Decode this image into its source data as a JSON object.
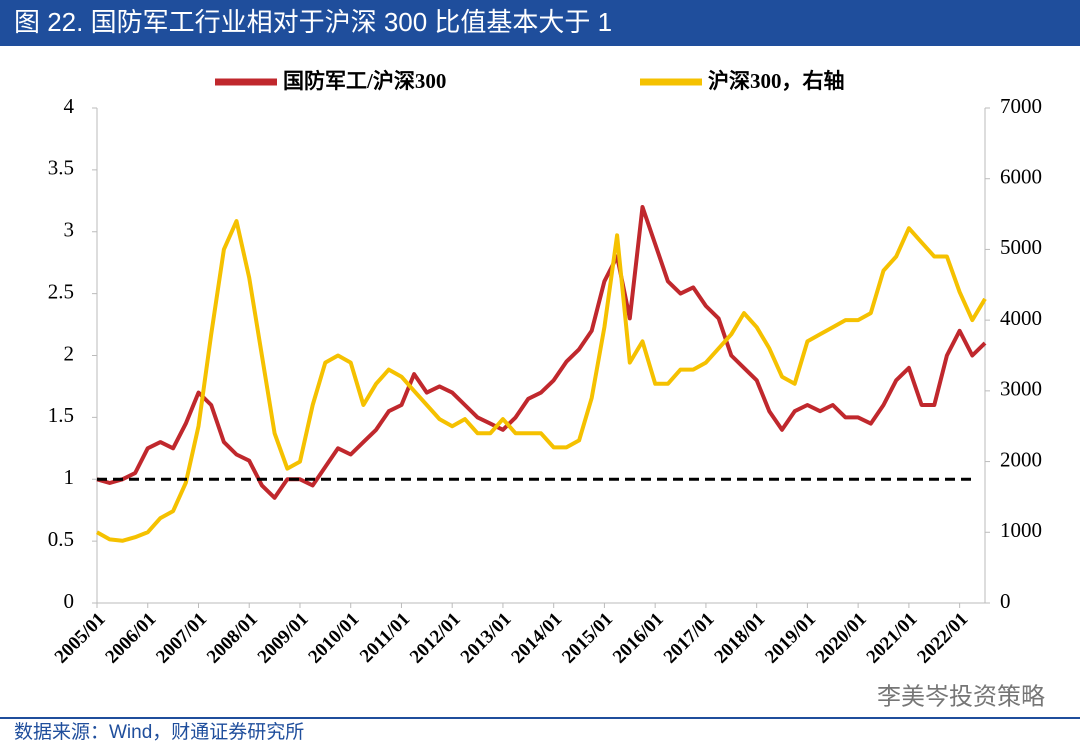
{
  "chart_data": {
    "type": "line",
    "title": "图 22. 国防军工行业相对于沪深 300 比值基本大于 1",
    "source": "数据来源：Wind，财通证券研究所",
    "watermark": "李美岑投资策略",
    "x": [
      "2005/01",
      "2005/04",
      "2005/07",
      "2005/10",
      "2006/01",
      "2006/04",
      "2006/07",
      "2006/10",
      "2007/01",
      "2007/04",
      "2007/07",
      "2007/10",
      "2008/01",
      "2008/04",
      "2008/07",
      "2008/10",
      "2009/01",
      "2009/04",
      "2009/07",
      "2009/10",
      "2010/01",
      "2010/04",
      "2010/07",
      "2010/10",
      "2011/01",
      "2011/04",
      "2011/07",
      "2011/10",
      "2012/01",
      "2012/04",
      "2012/07",
      "2012/10",
      "2013/01",
      "2013/04",
      "2013/07",
      "2013/10",
      "2014/01",
      "2014/04",
      "2014/07",
      "2014/10",
      "2015/01",
      "2015/04",
      "2015/07",
      "2015/10",
      "2016/01",
      "2016/04",
      "2016/07",
      "2016/10",
      "2017/01",
      "2017/04",
      "2017/07",
      "2017/10",
      "2018/01",
      "2018/04",
      "2018/07",
      "2018/10",
      "2019/01",
      "2019/04",
      "2019/07",
      "2019/10",
      "2020/01",
      "2020/04",
      "2020/07",
      "2020/10",
      "2021/01",
      "2021/04",
      "2021/07",
      "2021/10",
      "2022/01",
      "2022/04",
      "2022/07"
    ],
    "series": [
      {
        "name": "国防军工/沪深300",
        "color": "#c0282d",
        "axis": "y",
        "values": [
          1.0,
          0.97,
          1.0,
          1.05,
          1.25,
          1.3,
          1.25,
          1.45,
          1.7,
          1.6,
          1.3,
          1.2,
          1.15,
          0.95,
          0.85,
          1.0,
          1.0,
          0.95,
          1.1,
          1.25,
          1.2,
          1.3,
          1.4,
          1.55,
          1.6,
          1.85,
          1.7,
          1.75,
          1.7,
          1.6,
          1.5,
          1.45,
          1.4,
          1.5,
          1.65,
          1.7,
          1.8,
          1.95,
          2.05,
          2.2,
          2.6,
          2.8,
          2.3,
          3.2,
          2.9,
          2.6,
          2.5,
          2.55,
          2.4,
          2.3,
          2.0,
          1.9,
          1.8,
          1.55,
          1.4,
          1.55,
          1.6,
          1.55,
          1.6,
          1.5,
          1.5,
          1.45,
          1.6,
          1.8,
          1.9,
          1.6,
          1.6,
          2.0,
          2.2,
          2.0,
          2.1
        ]
      },
      {
        "name": "沪深300，右轴",
        "color": "#f5c100",
        "axis": "y2",
        "values": [
          1000,
          900,
          880,
          930,
          1000,
          1200,
          1300,
          1700,
          2500,
          3800,
          5000,
          5400,
          4600,
          3500,
          2400,
          1900,
          2000,
          2800,
          3400,
          3500,
          3400,
          2800,
          3100,
          3300,
          3200,
          3000,
          2800,
          2600,
          2500,
          2600,
          2400,
          2400,
          2600,
          2400,
          2400,
          2400,
          2200,
          2200,
          2300,
          2900,
          3900,
          5200,
          3400,
          3700,
          3100,
          3100,
          3300,
          3300,
          3400,
          3600,
          3800,
          4100,
          3900,
          3600,
          3200,
          3100,
          3700,
          3800,
          3900,
          4000,
          4000,
          4100,
          4700,
          4900,
          5300,
          5100,
          4900,
          4900,
          4400,
          4000,
          4300
        ]
      }
    ],
    "reference_line": {
      "value": 1,
      "color": "#000000"
    },
    "xlim": [
      "2005/01",
      "2022/07"
    ],
    "xticks": [
      "2005/01",
      "2006/01",
      "2007/01",
      "2008/01",
      "2009/01",
      "2010/01",
      "2011/01",
      "2012/01",
      "2013/01",
      "2014/01",
      "2015/01",
      "2016/01",
      "2017/01",
      "2018/01",
      "2019/01",
      "2020/01",
      "2021/01",
      "2022/01"
    ],
    "ylim": [
      0,
      4
    ],
    "yticks": [
      0,
      0.5,
      1,
      1.5,
      2,
      2.5,
      3,
      3.5,
      4
    ],
    "y2lim": [
      0,
      7000
    ],
    "y2ticks": [
      0,
      1000,
      2000,
      3000,
      4000,
      5000,
      6000,
      7000
    ],
    "legend": "top",
    "grid": false
  }
}
